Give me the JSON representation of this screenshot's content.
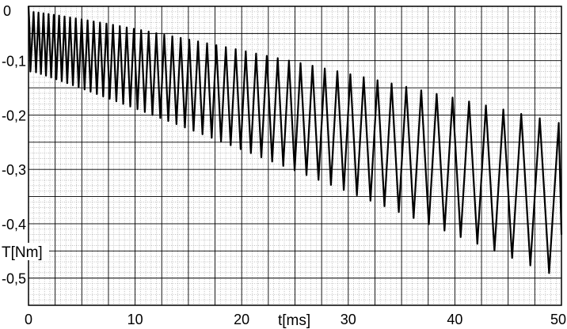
{
  "chart_data": {
    "type": "line",
    "title": "",
    "xlabel": "t[ms]",
    "ylabel": "T[Nm]",
    "xlim": [
      0,
      50
    ],
    "ylim": [
      -0.55,
      0
    ],
    "xticks": [
      "0",
      "10",
      "20",
      "30",
      "40",
      "50"
    ],
    "yticks": [
      "0",
      "-0,1",
      "-0,2",
      "-0,3",
      "-0,4",
      "-0,5"
    ],
    "grid": true,
    "minor_grid": true,
    "legend": "none",
    "series_color": "#000000",
    "series": [
      {
        "values_description_omitted": true,
        "oscillation_start_ms": 0.25,
        "first_period_ms": 0.45,
        "last_period_ms": 1.85,
        "trough_start": -0.12,
        "trough_end": -0.515,
        "peak_start": -0.01,
        "peak_end": -0.22,
        "final_rise_to": -0.42
      }
    ]
  }
}
